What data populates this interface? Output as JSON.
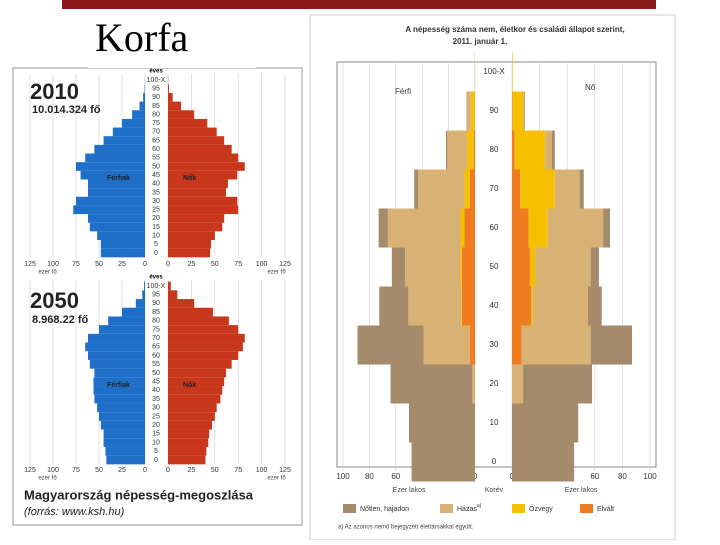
{
  "slide_title": "Korfa",
  "caption": "Magyarország népesség-megoszlása",
  "source": "(forrás: www.ksh.hu)",
  "chart_data": [
    {
      "type": "pyramid",
      "title": "2010",
      "subtitle": "10.014.324 fő",
      "y_label": "éves",
      "x_label": "ezer fő",
      "categories": [
        "0",
        "5",
        "10",
        "15",
        "20",
        "25",
        "30",
        "35",
        "40",
        "45",
        "50",
        "55",
        "60",
        "65",
        "70",
        "75",
        "80",
        "85",
        "90",
        "95",
        "100-X"
      ],
      "series": [
        {
          "name": "Férfiak",
          "side": "left",
          "color": "#1f6fc9",
          "values": [
            48,
            48,
            52,
            60,
            62,
            78,
            75,
            62,
            62,
            70,
            75,
            65,
            55,
            45,
            35,
            25,
            14,
            6,
            2,
            0.5,
            0.1
          ]
        },
        {
          "name": "Nők",
          "side": "right",
          "color": "#c8361c",
          "values": [
            45,
            46,
            50,
            58,
            60,
            75,
            74,
            62,
            64,
            74,
            82,
            75,
            68,
            60,
            52,
            42,
            28,
            14,
            5,
            1,
            0.2
          ]
        }
      ],
      "xlim": [
        0,
        125
      ],
      "xticks": [
        0,
        25,
        50,
        75,
        100,
        125
      ],
      "grid": true
    },
    {
      "type": "pyramid",
      "title": "2050",
      "subtitle": "8.968.22 fő",
      "y_label": "éves",
      "x_label": "ezer fő",
      "categories": [
        "0",
        "5",
        "10",
        "15",
        "20",
        "25",
        "30",
        "35",
        "40",
        "45",
        "50",
        "55",
        "60",
        "65",
        "70",
        "75",
        "80",
        "85",
        "90",
        "95",
        "100-X"
      ],
      "series": [
        {
          "name": "Férfiak",
          "side": "left",
          "color": "#1f6fc9",
          "values": [
            42,
            43,
            45,
            45,
            48,
            50,
            52,
            55,
            56,
            56,
            55,
            60,
            62,
            65,
            62,
            50,
            40,
            25,
            10,
            3,
            1
          ]
        },
        {
          "name": "Nők",
          "side": "right",
          "color": "#c8361c",
          "values": [
            40,
            41,
            43,
            44,
            47,
            50,
            52,
            56,
            58,
            60,
            62,
            68,
            75,
            80,
            82,
            75,
            65,
            48,
            28,
            10,
            3
          ]
        }
      ],
      "xlim": [
        0,
        125
      ],
      "xticks": [
        0,
        25,
        50,
        75,
        100,
        125
      ],
      "grid": true
    },
    {
      "type": "stackedpyramid",
      "title": "A népesség száma nem, életkor és családi állapot szerint,",
      "subtitle": "2011. január 1.",
      "left_label": "Férfi",
      "right_label": "Nő",
      "x_label": "Ezer lakos",
      "y_label": "Korév",
      "categories": [
        "0",
        "10",
        "20",
        "30",
        "40",
        "50",
        "60",
        "70",
        "80",
        "90",
        "100-X"
      ],
      "series": [
        {
          "name": "Nőtlen, hajadon",
          "color": "#a58a6c",
          "left_values": [
            48,
            50,
            62,
            50,
            22,
            10,
            7,
            3,
            1,
            0.3,
            0
          ],
          "right_values": [
            45,
            48,
            50,
            30,
            10,
            6,
            5,
            3,
            2,
            0.5,
            0
          ]
        },
        {
          "name": "Házas",
          "note": "a)",
          "color": "#d8b274",
          "left_values": [
            0,
            0,
            2,
            35,
            40,
            42,
            55,
            35,
            15,
            3,
            0.1
          ],
          "right_values": [
            0,
            0,
            8,
            50,
            40,
            40,
            40,
            18,
            5,
            0.5,
            0
          ]
        },
        {
          "name": "Özvegy",
          "color": "#f5c000",
          "left_values": [
            0,
            0,
            0,
            0,
            0.5,
            1,
            3,
            4,
            5,
            3,
            0.2
          ],
          "right_values": [
            0,
            0,
            0,
            0,
            1,
            4,
            14,
            25,
            22,
            8,
            0.5
          ]
        },
        {
          "name": "Elvált",
          "color": "#ef7d1f",
          "left_values": [
            0,
            0,
            0,
            4,
            10,
            10,
            8,
            4,
            1,
            0.2,
            0
          ],
          "right_values": [
            0,
            0,
            0,
            7,
            14,
            13,
            12,
            6,
            2,
            0.3,
            0
          ]
        }
      ],
      "xlim": [
        0,
        100
      ],
      "xticks": [
        0,
        20,
        40,
        60,
        80,
        100
      ],
      "grid": true,
      "footnote": "a) Az azonos nemű bejegyzett élettársakkal együtt."
    }
  ]
}
